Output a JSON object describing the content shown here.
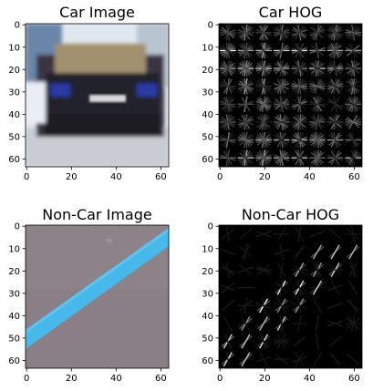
{
  "chart_data": [
    {
      "type": "heatmap",
      "title": "Car Image",
      "content": "rgb-image",
      "image_size": [
        64,
        64
      ],
      "x_ticks": [
        0,
        20,
        40,
        60
      ],
      "y_ticks": [
        0,
        10,
        20,
        30,
        40,
        50,
        60
      ],
      "xlim": [
        -0.5,
        63.5
      ],
      "ylim": [
        63.5,
        -0.5
      ]
    },
    {
      "type": "heatmap",
      "title": "Car HOG",
      "content": "hog-grayscale",
      "colormap": "gray",
      "image_size": [
        64,
        64
      ],
      "x_ticks": [
        0,
        20,
        40,
        60
      ],
      "y_ticks": [
        0,
        10,
        20,
        30,
        40,
        50,
        60
      ],
      "xlim": [
        -0.5,
        63.5
      ],
      "ylim": [
        63.5,
        -0.5
      ]
    },
    {
      "type": "heatmap",
      "title": "Non-Car Image",
      "content": "rgb-image",
      "image_size": [
        64,
        64
      ],
      "x_ticks": [
        0,
        20,
        40,
        60
      ],
      "y_ticks": [
        0,
        10,
        20,
        30,
        40,
        50,
        60
      ],
      "xlim": [
        -0.5,
        63.5
      ],
      "ylim": [
        63.5,
        -0.5
      ]
    },
    {
      "type": "heatmap",
      "title": "Non-Car HOG",
      "content": "hog-grayscale",
      "colormap": "gray",
      "image_size": [
        64,
        64
      ],
      "x_ticks": [
        0,
        20,
        40,
        60
      ],
      "y_ticks": [
        0,
        10,
        20,
        30,
        40,
        50,
        60
      ],
      "xlim": [
        -0.5,
        63.5
      ],
      "ylim": [
        63.5,
        -0.5
      ]
    }
  ],
  "colors": {
    "road_gray": "#8a7f86",
    "lane_blue": "#46b9ea",
    "car_sky": "#dde6ec",
    "car_body": "#2a2a33",
    "car_roof": "#9b8a68",
    "plate": "#d8d8d8",
    "hog_background": "#000000",
    "hog_stroke": "#ffffff"
  }
}
